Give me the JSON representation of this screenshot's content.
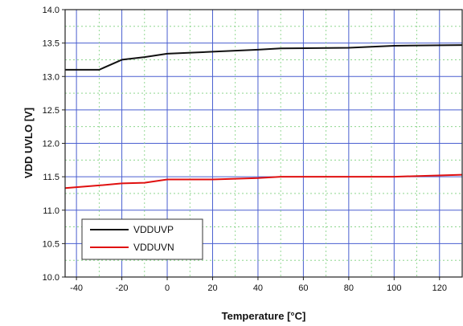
{
  "chart_data": {
    "type": "line",
    "title": "",
    "xlabel": "Temperature [°C]",
    "ylabel": "VDD UVLO [V]",
    "xlim": [
      -45,
      130
    ],
    "ylim": [
      10.0,
      14.0
    ],
    "x_ticks": [
      "-40",
      "-20",
      "0",
      "20",
      "40",
      "60",
      "80",
      "100",
      "120"
    ],
    "y_ticks": [
      "10.0",
      "10.5",
      "11.0",
      "11.5",
      "12.0",
      "12.5",
      "13.0",
      "13.5",
      "14.0"
    ],
    "x_tick_values": [
      -40,
      -20,
      0,
      20,
      40,
      60,
      80,
      100,
      120
    ],
    "y_tick_values": [
      10.0,
      10.5,
      11.0,
      11.5,
      12.0,
      12.5,
      13.0,
      13.5,
      14.0
    ],
    "grid": true,
    "legend_position": "bottom-left",
    "series": [
      {
        "name": "VDDUVP",
        "color": "#111111",
        "x": [
          -45,
          -30,
          -20,
          -10,
          0,
          20,
          40,
          50,
          80,
          100,
          130
        ],
        "y": [
          13.1,
          13.1,
          13.25,
          13.29,
          13.34,
          13.37,
          13.4,
          13.42,
          13.43,
          13.46,
          13.47
        ]
      },
      {
        "name": "VDDUVN",
        "color": "#e01010",
        "x": [
          -45,
          -30,
          -20,
          -10,
          0,
          20,
          40,
          50,
          100,
          130
        ],
        "y": [
          11.33,
          11.37,
          11.4,
          11.41,
          11.46,
          11.46,
          11.48,
          11.5,
          11.5,
          11.53
        ]
      }
    ]
  }
}
